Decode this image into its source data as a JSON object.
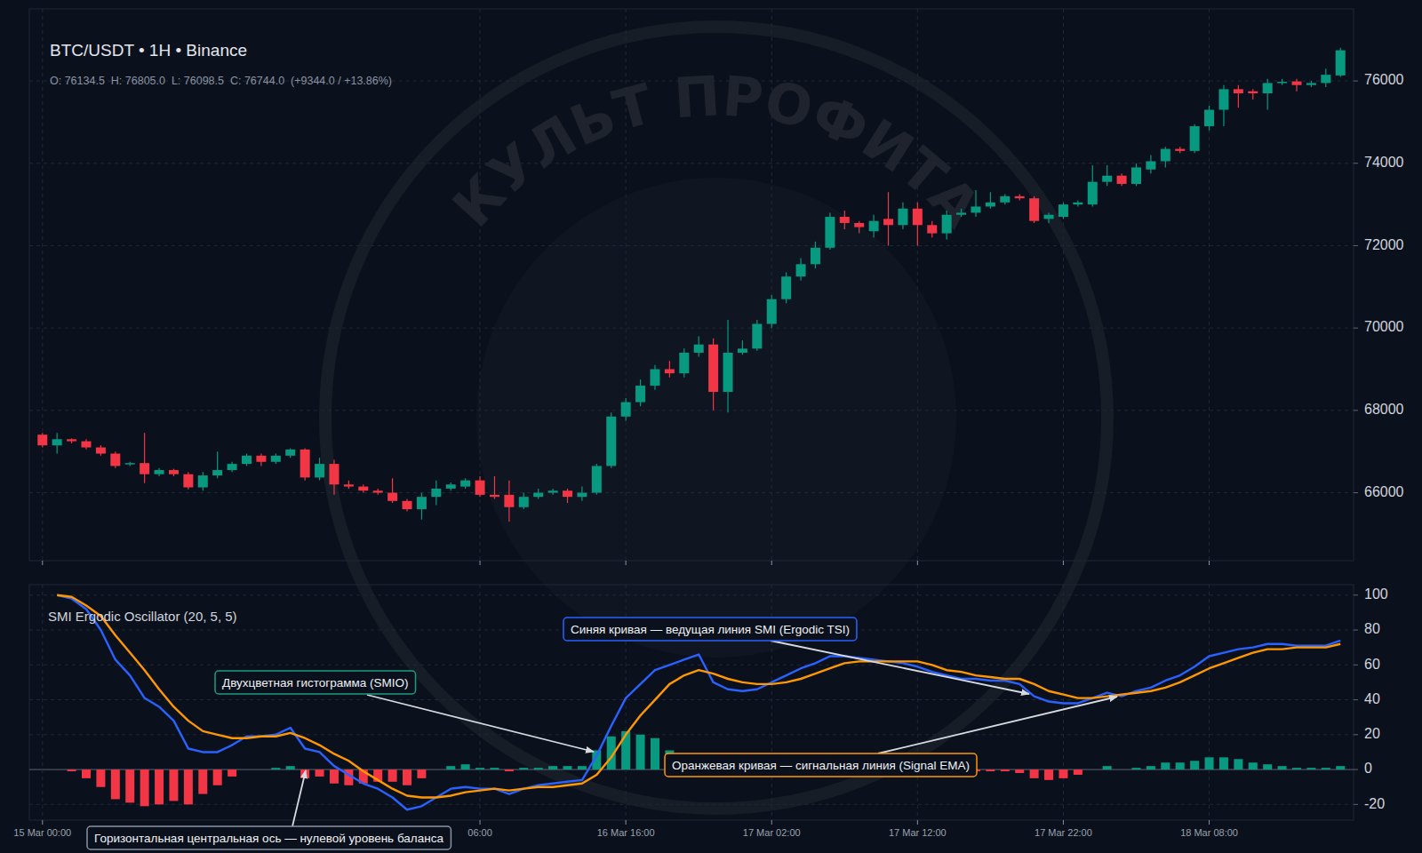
{
  "watermark": "КУЛЬТ ПРОФИТА",
  "chart_data": [
    {
      "type": "candlestick",
      "title": "BTC/USDT • 1H • Binance",
      "subtitle": "O: 76134.5  H: 76805.0  L: 76098.5  C: 76744.0  (+9344.0 / +13.86%)",
      "categories": [
        "15 Mar 00:00",
        null,
        null,
        null,
        null,
        null,
        null,
        null,
        null,
        null,
        null,
        null,
        null,
        null,
        null,
        null,
        null,
        null,
        null,
        null,
        null,
        null,
        null,
        null,
        null,
        null,
        null,
        null,
        null,
        null,
        "06:00",
        null,
        null,
        null,
        null,
        null,
        null,
        null,
        null,
        null,
        "16 Mar 16:00",
        null,
        null,
        null,
        null,
        null,
        null,
        null,
        null,
        null,
        "17 Mar 02:00",
        null,
        null,
        null,
        null,
        null,
        null,
        null,
        null,
        null,
        "17 Mar 12:00",
        null,
        null,
        null,
        null,
        null,
        null,
        null,
        null,
        null,
        "17 Mar 22:00",
        null,
        null,
        null,
        null,
        null,
        null,
        null,
        null,
        null,
        "18 Mar 08:00",
        null,
        null,
        null,
        null,
        null,
        null,
        null,
        null,
        null
      ],
      "open": [
        67410,
        67150,
        67300,
        67250,
        67100,
        66950,
        66700,
        66720,
        66450,
        66550,
        66450,
        66130,
        66420,
        66550,
        66700,
        66900,
        66750,
        66900,
        67050,
        66370,
        66700,
        66200,
        66150,
        66050,
        66000,
        65800,
        65600,
        65900,
        66100,
        66150,
        66300,
        65950,
        65950,
        65650,
        65900,
        66000,
        66050,
        65900,
        66000,
        66650,
        67850,
        68200,
        68600,
        69000,
        68900,
        69400,
        69600,
        68450,
        69400,
        69500,
        70100,
        70700,
        71250,
        71550,
        71950,
        72700,
        72550,
        72350,
        72650,
        72500,
        72900,
        72500,
        72300,
        72750,
        72800,
        72950,
        73050,
        73200,
        73150,
        72650,
        72700,
        73000,
        73000,
        73550,
        73700,
        73500,
        73850,
        74050,
        74350,
        74300,
        74900,
        75300,
        75800,
        75750,
        75700,
        75950,
        75990,
        75900,
        75950,
        76134.5
      ],
      "high": [
        67450,
        67450,
        67320,
        67300,
        67150,
        67000,
        66750,
        67450,
        66600,
        66580,
        66500,
        66500,
        67000,
        66750,
        66950,
        66950,
        66950,
        67080,
        67080,
        66850,
        66800,
        66300,
        66200,
        66100,
        66350,
        65850,
        66000,
        66300,
        66250,
        66350,
        66400,
        66400,
        66300,
        66000,
        66100,
        66100,
        66100,
        66150,
        66700,
        67950,
        68300,
        68750,
        69100,
        69200,
        69500,
        69800,
        69750,
        70200,
        69700,
        70200,
        70800,
        71350,
        71700,
        72100,
        72800,
        72850,
        72600,
        72750,
        73300,
        73050,
        73050,
        72600,
        72850,
        72900,
        73350,
        73300,
        73250,
        73250,
        73200,
        72800,
        73050,
        73100,
        73950,
        73950,
        73750,
        74000,
        74200,
        74400,
        74400,
        74950,
        75400,
        75900,
        75900,
        75800,
        76050,
        76050,
        76050,
        76000,
        76300,
        76805
      ],
      "low": [
        67100,
        66950,
        67200,
        67050,
        66900,
        66600,
        66650,
        66230,
        66400,
        66400,
        66080,
        66050,
        66350,
        66500,
        66650,
        66650,
        66700,
        66850,
        66300,
        66300,
        65950,
        66100,
        66000,
        65950,
        65750,
        65550,
        65350,
        65700,
        66050,
        66100,
        65900,
        65850,
        65300,
        65600,
        65850,
        65950,
        65750,
        65800,
        65950,
        66600,
        67750,
        68100,
        68500,
        68800,
        68800,
        69300,
        68000,
        67950,
        69350,
        69450,
        70000,
        70600,
        71150,
        71450,
        71900,
        72400,
        72300,
        72200,
        72000,
        72400,
        72000,
        72200,
        72150,
        72700,
        72700,
        72900,
        73000,
        73100,
        72550,
        72550,
        72650,
        72950,
        72950,
        73450,
        73450,
        73450,
        73750,
        73900,
        74250,
        74250,
        74800,
        74900,
        75350,
        75550,
        75300,
        75900,
        75750,
        75850,
        75850,
        76098.5
      ],
      "close": [
        67150,
        67300,
        67250,
        67100,
        66950,
        66650,
        66720,
        66450,
        66550,
        66450,
        66130,
        66420,
        66550,
        66700,
        66900,
        66750,
        66900,
        67050,
        66370,
        66700,
        66200,
        66150,
        66050,
        66000,
        65800,
        65600,
        65900,
        66100,
        66200,
        66300,
        65950,
        65900,
        65650,
        65900,
        66000,
        66050,
        65900,
        66000,
        66650,
        67850,
        68200,
        68600,
        69000,
        68900,
        69400,
        69600,
        68450,
        69400,
        69500,
        70100,
        70700,
        71250,
        71550,
        71950,
        72700,
        72550,
        72450,
        72600,
        72500,
        72900,
        72500,
        72300,
        72750,
        72800,
        72950,
        73050,
        73200,
        73150,
        72600,
        72750,
        73000,
        73050,
        73550,
        73700,
        73500,
        73900,
        74050,
        74350,
        74300,
        74900,
        75300,
        75800,
        75700,
        75700,
        75950,
        75980,
        75900,
        75950,
        76150,
        76744
      ],
      "ylim": [
        64350,
        77750
      ],
      "yticks": [
        66000,
        68000,
        70000,
        72000,
        74000,
        76000
      ],
      "grid": true,
      "tick_labels": "y"
    },
    {
      "type": "line",
      "title": "SMI Ergodic Oscillator (20, 5, 5)",
      "categories": [
        "15 Mar 00:00",
        null,
        null,
        null,
        null,
        null,
        null,
        null,
        null,
        null,
        null,
        null,
        null,
        null,
        null,
        null,
        null,
        null,
        null,
        null,
        null,
        null,
        null,
        null,
        null,
        null,
        null,
        null,
        null,
        null,
        "06:00",
        null,
        null,
        null,
        null,
        null,
        null,
        null,
        null,
        null,
        "16 Mar 16:00",
        null,
        null,
        null,
        null,
        null,
        null,
        null,
        null,
        null,
        "17 Mar 02:00",
        null,
        null,
        null,
        null,
        null,
        null,
        null,
        null,
        null,
        "17 Mar 12:00",
        null,
        null,
        null,
        null,
        null,
        null,
        null,
        null,
        null,
        "17 Mar 22:00",
        null,
        null,
        null,
        null,
        null,
        null,
        null,
        null,
        null,
        "18 Mar 08:00",
        null,
        null,
        null,
        null,
        null,
        null,
        null,
        null,
        null
      ],
      "series": [
        {
          "type": "bar",
          "values": [
            null,
            null,
            -1,
            -5,
            -10,
            -17,
            -19,
            -21,
            -20,
            -18,
            -20,
            -14,
            -9,
            -4,
            0,
            0,
            1,
            2,
            -5,
            -4,
            -8,
            -9,
            -8,
            -7,
            -7,
            -9,
            -5,
            0,
            2,
            3,
            1,
            1,
            -1,
            1,
            1,
            2,
            2,
            2,
            11,
            19,
            22,
            20,
            18,
            11,
            9,
            7,
            -2,
            -3,
            -2,
            -1,
            0,
            1,
            2,
            2,
            2,
            1,
            0,
            0,
            -1,
            -1,
            -2,
            -2,
            -2,
            -2,
            -1,
            -1,
            -1,
            -2,
            -5,
            -6,
            -5,
            -3,
            0,
            2,
            0,
            1,
            2,
            4,
            4,
            5,
            7,
            7,
            6,
            4,
            3,
            2,
            1,
            1,
            1,
            2
          ]
        },
        {
          "type": "line",
          "color": "#2962ff",
          "values": [
            null,
            100,
            98,
            92,
            80,
            63,
            54,
            41,
            36,
            28,
            12,
            10,
            10,
            14,
            19,
            19,
            20,
            24,
            12,
            10,
            2,
            -3,
            -8,
            -11,
            -16,
            -23,
            -21,
            -16,
            -11,
            -10,
            -11,
            -11,
            -14,
            -11,
            -9,
            -8,
            -7,
            -6,
            8,
            25,
            41,
            49,
            57,
            60,
            63,
            66,
            50,
            46,
            45,
            46,
            50,
            54,
            58,
            61,
            65,
            65,
            64,
            63,
            62,
            61,
            59,
            56,
            54,
            52,
            52,
            51,
            51,
            49,
            42,
            39,
            38,
            38,
            41,
            44,
            42,
            45,
            47,
            51,
            54,
            59,
            65,
            67,
            69,
            70,
            72,
            72,
            71,
            71,
            71,
            74
          ]
        },
        {
          "type": "line",
          "color": "#ff9800",
          "values": [
            null,
            100,
            99,
            94,
            88,
            77,
            67,
            57,
            46,
            36,
            28,
            22,
            20,
            18,
            18,
            19,
            19,
            21,
            18,
            14,
            9,
            5,
            -1,
            -6,
            -11,
            -15,
            -16,
            -16,
            -15,
            -13,
            -12,
            -11,
            -12,
            -11,
            -10,
            -10,
            -9,
            -8,
            -3,
            7,
            20,
            31,
            40,
            49,
            54,
            57,
            55,
            52,
            50,
            49,
            49,
            50,
            52,
            55,
            58,
            61,
            62,
            62,
            62,
            62,
            62,
            60,
            57,
            56,
            54,
            53,
            52,
            52,
            49,
            45,
            43,
            41,
            41,
            42,
            43,
            44,
            45,
            47,
            50,
            54,
            58,
            61,
            64,
            67,
            69,
            69,
            70,
            70,
            70,
            72
          ]
        }
      ],
      "ylim": [
        -29,
        106
      ],
      "yticks": [
        -20,
        0,
        20,
        40,
        60,
        80,
        100
      ],
      "grid": true,
      "annotations": [
        "Двухцветная гистограмма (SMIO)",
        "Синяя кривая — ведущая линия SMI (Ergodic TSI)",
        "Оранжевая кривая — сигнальная линия (Signal EMA)",
        "Горизонтальная центральная ось — нулевой уровень баланса"
      ]
    }
  ]
}
